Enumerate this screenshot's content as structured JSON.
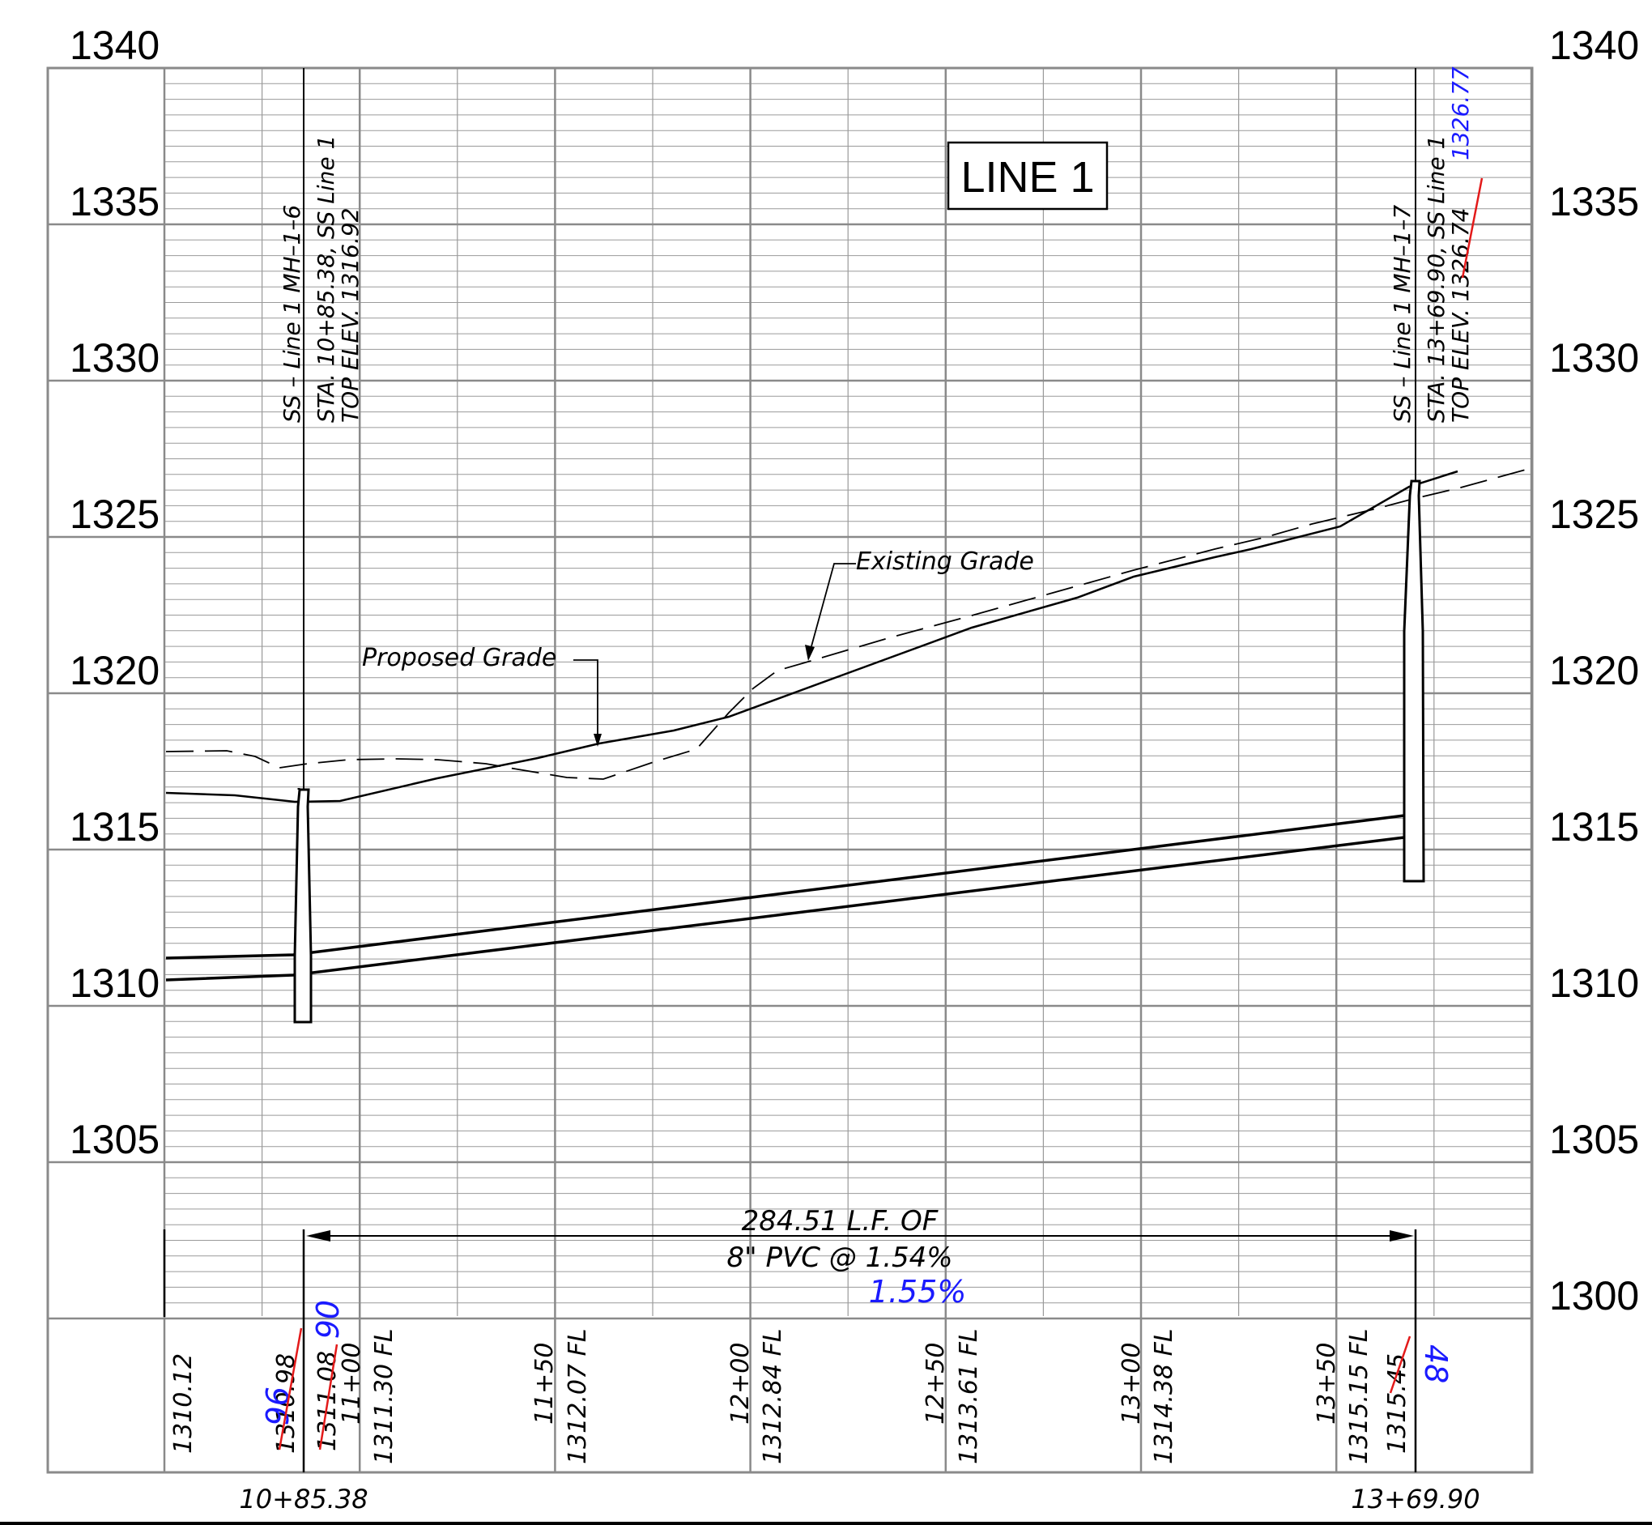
{
  "title": "LINE 1",
  "elevation_labels": [
    "1340",
    "1335",
    "1330",
    "1325",
    "1320",
    "1315",
    "1310",
    "1305",
    "1300"
  ],
  "manholes": [
    {
      "name": "SS – Line 1 MH–1–6",
      "station_text": "STA. 10+85.38, SS Line 1",
      "top_elev_text": "TOP ELEV. 1316.92",
      "bottom_station": "10+85.38"
    },
    {
      "name": "SS – Line 1 MH–1–7",
      "station_text": "STA. 13+69.90, SS Line 1",
      "top_elev_prefix": "TOP ELEV.",
      "top_elev_struck": "1326.74",
      "top_elev_revised": "1326.77",
      "bottom_station": "13+69.90"
    }
  ],
  "callouts": {
    "proposed": "Proposed Grade",
    "existing": "Existing Grade"
  },
  "pipe": {
    "line1": "284.51 L.F. OF",
    "line2": "8\" PVC @ 1.54%",
    "revised_slope": "1.55%"
  },
  "flowline_labels": [
    {
      "key": "l1310",
      "text": "1310.12"
    },
    {
      "key": "l1310b",
      "text": "1310.98",
      "struck": true
    },
    {
      "key": "l1310bRev",
      "text": "96"
    },
    {
      "key": "l1311a",
      "text": "1311.08",
      "struck": true
    },
    {
      "key": "l1311aRev",
      "text": "06"
    },
    {
      "key": "l11s",
      "text": "11+00"
    },
    {
      "key": "l11v",
      "text": "1311.30 FL"
    },
    {
      "key": "l1150s",
      "text": "11+50"
    },
    {
      "key": "l1150v",
      "text": "1312.07 FL"
    },
    {
      "key": "l12s",
      "text": "12+00"
    },
    {
      "key": "l12v",
      "text": "1312.84 FL"
    },
    {
      "key": "l1250s",
      "text": "12+50"
    },
    {
      "key": "l1250v",
      "text": "1313.61 FL"
    },
    {
      "key": "l13s",
      "text": "13+00"
    },
    {
      "key": "l13v",
      "text": "1314.38 FL"
    },
    {
      "key": "l1350s",
      "text": "13+50"
    },
    {
      "key": "l1350v",
      "text": "1315.15 FL"
    },
    {
      "key": "lend",
      "text": "1315.45",
      "struck": true
    },
    {
      "key": "lendRev",
      "text": "48"
    }
  ]
}
